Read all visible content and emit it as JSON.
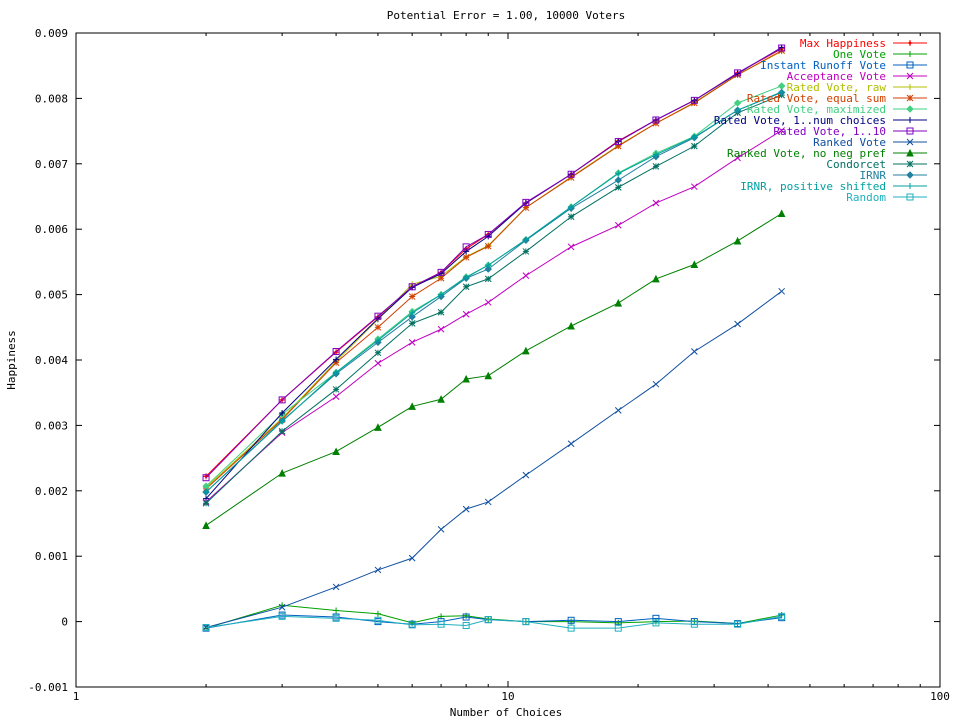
{
  "chart_data": {
    "type": "line",
    "title": "Potential Error = 1.00, 10000 Voters",
    "xlabel": "Number of Choices",
    "ylabel": "Happiness",
    "xscale": "log",
    "xlim": [
      1,
      100
    ],
    "ylim": [
      -0.001,
      0.009
    ],
    "x_ticks": [
      1,
      10,
      100
    ],
    "x_tick_labels": [
      "1",
      "10",
      "100"
    ],
    "y_ticks": [
      -0.001,
      0,
      0.001,
      0.002,
      0.003,
      0.004,
      0.005,
      0.006,
      0.007,
      0.008,
      0.009
    ],
    "y_tick_labels": [
      "-0.001",
      "0",
      "0.001",
      "0.002",
      "0.003",
      "0.004",
      "0.005",
      "0.006",
      "0.007",
      "0.008",
      "0.009"
    ],
    "grid": false,
    "legend_position": "top-right",
    "x": [
      2,
      3,
      4,
      5,
      6,
      7,
      8,
      9,
      11,
      14,
      18,
      22,
      27,
      34,
      43
    ],
    "series": [
      {
        "name": "Max Happiness",
        "color": "#ff0000",
        "marker": "plus-dot",
        "values": [
          0.00222,
          0.00339,
          0.00412,
          0.00466,
          0.00512,
          0.00534,
          0.0057,
          0.00592,
          0.0064,
          0.00684,
          0.00735,
          0.00767,
          0.00797,
          0.00839,
          0.00876
        ]
      },
      {
        "name": "One Vote",
        "color": "#00a000",
        "marker": "plus",
        "values": [
          -0.0001,
          0.00025,
          0.00017,
          0.00012,
          -2e-05,
          8e-05,
          9e-05,
          4e-05,
          0.0,
          0.0,
          -2e-05,
          0.0,
          1e-05,
          -3e-05,
          0.0001
        ]
      },
      {
        "name": "Instant Runoff Vote",
        "color": "#0060c0",
        "marker": "square",
        "values": [
          -0.0001,
          0.0001,
          7e-05,
          0.0,
          -4e-05,
          0.0,
          7e-05,
          3e-05,
          0.0,
          2e-05,
          0.0,
          5e-05,
          0.0,
          -3e-05,
          6e-05
        ]
      },
      {
        "name": "Acceptance Vote",
        "color": "#c000c0",
        "marker": "cross",
        "values": [
          0.00183,
          0.00289,
          0.00344,
          0.00395,
          0.00427,
          0.00447,
          0.0047,
          0.00488,
          0.00529,
          0.00573,
          0.00606,
          0.0064,
          0.00665,
          0.00709,
          0.00751
        ]
      },
      {
        "name": "Rated Vote, raw",
        "color": "#b0c000",
        "marker": "plus",
        "values": [
          0.00205,
          0.00311,
          0.00398,
          0.00462,
          0.00516,
          0.00528,
          0.00558,
          0.00575,
          0.00633,
          0.0068,
          0.00728,
          0.00762,
          0.00794,
          0.00836,
          0.00872
        ]
      },
      {
        "name": "Rated Vote, equal sum",
        "color": "#d04000",
        "marker": "star",
        "values": [
          0.00203,
          0.00309,
          0.00396,
          0.0045,
          0.00497,
          0.00525,
          0.00557,
          0.00574,
          0.00633,
          0.00679,
          0.00727,
          0.00762,
          0.00793,
          0.00836,
          0.00873
        ]
      },
      {
        "name": "Rated Vote, maximized",
        "color": "#40d080",
        "marker": "diamond",
        "values": [
          0.00207,
          0.00317,
          0.00381,
          0.00432,
          0.00474,
          0.005,
          0.00527,
          0.00545,
          0.00584,
          0.00634,
          0.00686,
          0.00716,
          0.00742,
          0.00793,
          0.00819
        ]
      },
      {
        "name": "Rated Vote, 1..num choices",
        "color": "#000080",
        "marker": "plus",
        "values": [
          0.00188,
          0.00319,
          0.00401,
          0.00463,
          0.00511,
          0.00532,
          0.00566,
          0.00589,
          0.0064,
          0.00684,
          0.00734,
          0.00767,
          0.00797,
          0.00838,
          0.00878
        ]
      },
      {
        "name": "Rated Vote, 1..10",
        "color": "#8000c0",
        "marker": "square",
        "values": [
          0.0022,
          0.00339,
          0.00413,
          0.00467,
          0.00512,
          0.00534,
          0.00573,
          0.00592,
          0.00641,
          0.00684,
          0.00734,
          0.00767,
          0.00797,
          0.00839,
          0.00877
        ]
      },
      {
        "name": "Ranked Vote",
        "color": "#1050a0",
        "marker": "cross",
        "values": [
          -9e-05,
          0.00022,
          0.00053,
          0.00079,
          0.00097,
          0.00141,
          0.00172,
          0.00183,
          0.00224,
          0.00272,
          0.00323,
          0.00363,
          0.00413,
          0.00455,
          0.00505
        ]
      },
      {
        "name": "Ranked Vote, no neg pref",
        "color": "#008000",
        "marker": "triangle",
        "values": [
          0.00147,
          0.00227,
          0.0026,
          0.00297,
          0.00329,
          0.0034,
          0.00371,
          0.00376,
          0.00414,
          0.00452,
          0.00487,
          0.00524,
          0.00546,
          0.00582,
          0.00624
        ]
      },
      {
        "name": "Condorcet",
        "color": "#007060",
        "marker": "star",
        "values": [
          0.00181,
          0.00291,
          0.00355,
          0.00411,
          0.00456,
          0.00473,
          0.00512,
          0.00524,
          0.00566,
          0.00619,
          0.00664,
          0.00696,
          0.00727,
          0.00778,
          0.00805
        ]
      },
      {
        "name": "IRNR",
        "color": "#2080a0",
        "marker": "diamond",
        "values": [
          0.00198,
          0.00307,
          0.00379,
          0.00427,
          0.00466,
          0.00497,
          0.00525,
          0.00539,
          0.00583,
          0.00632,
          0.00675,
          0.00711,
          0.0074,
          0.00782,
          0.00809
        ]
      },
      {
        "name": "IRNR, positive shifted",
        "color": "#00a0a0",
        "marker": "plus",
        "values": [
          0.00198,
          0.00306,
          0.00381,
          0.0043,
          0.00472,
          0.005,
          0.00526,
          0.00545,
          0.00584,
          0.00634,
          0.00685,
          0.00714,
          0.00741,
          0.00782,
          0.0081
        ]
      },
      {
        "name": "Random",
        "color": "#20b0c0",
        "marker": "square",
        "values": [
          -9e-05,
          8e-05,
          5e-05,
          2e-05,
          -5e-05,
          -4e-05,
          -6e-05,
          3e-05,
          0.0,
          -0.0001,
          -0.0001,
          -2e-05,
          -4e-05,
          -4e-05,
          8e-05
        ]
      }
    ]
  }
}
